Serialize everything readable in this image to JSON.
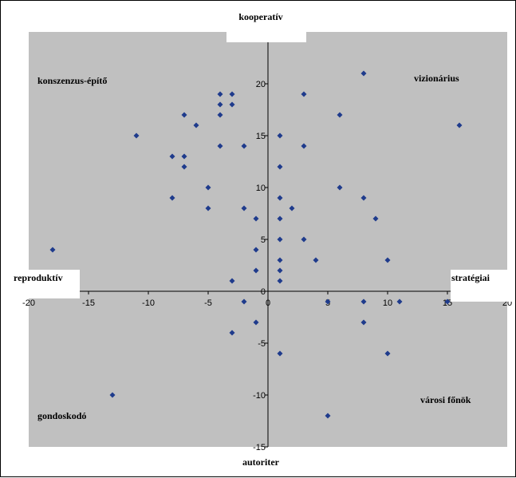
{
  "chart_data": {
    "type": "scatter",
    "title": "",
    "xlabel": "",
    "ylabel": "",
    "xlim": [
      -20,
      20
    ],
    "ylim": [
      -15,
      25
    ],
    "x_ticks": [
      -20,
      -15,
      -10,
      -5,
      0,
      5,
      10,
      15,
      20
    ],
    "y_ticks": [
      -15,
      -10,
      -5,
      0,
      5,
      10,
      15,
      20
    ],
    "x_tick_labels": [
      "-20",
      "-15",
      "-10",
      "-5",
      "0",
      "5",
      "10",
      "15",
      "20"
    ],
    "y_tick_labels": [
      "-15",
      "-10",
      "-5",
      "0",
      "5",
      "10",
      "15",
      "20"
    ],
    "grid": false,
    "plot_background": "#c0c0c0",
    "marker_color": "#1f3b8c",
    "axis_labels": {
      "top": "kooperatív",
      "bottom": "autoriter",
      "left": "reproduktív",
      "right": "stratégiai"
    },
    "quadrant_labels": {
      "top_left": "konszenzus-építő",
      "top_right": "vizionárius",
      "bottom_left": "gondoskodó",
      "bottom_right": "városi főnök"
    },
    "points": [
      {
        "x": -18,
        "y": 4
      },
      {
        "x": -13,
        "y": -10
      },
      {
        "x": -11,
        "y": 15
      },
      {
        "x": -8,
        "y": 13
      },
      {
        "x": -8,
        "y": 9
      },
      {
        "x": -7,
        "y": 17
      },
      {
        "x": -7,
        "y": 13
      },
      {
        "x": -7,
        "y": 12
      },
      {
        "x": -6,
        "y": 16
      },
      {
        "x": -5,
        "y": 10
      },
      {
        "x": -5,
        "y": 8
      },
      {
        "x": -4,
        "y": 19
      },
      {
        "x": -4,
        "y": 18
      },
      {
        "x": -4,
        "y": 17
      },
      {
        "x": -4,
        "y": 14
      },
      {
        "x": -3,
        "y": 19
      },
      {
        "x": -3,
        "y": 18
      },
      {
        "x": -3,
        "y": 1
      },
      {
        "x": -3,
        "y": -4
      },
      {
        "x": -2,
        "y": 14
      },
      {
        "x": -2,
        "y": 8
      },
      {
        "x": -2,
        "y": -1
      },
      {
        "x": -1,
        "y": 7
      },
      {
        "x": -1,
        "y": 4
      },
      {
        "x": -1,
        "y": 2
      },
      {
        "x": -1,
        "y": -3
      },
      {
        "x": 1,
        "y": 15
      },
      {
        "x": 1,
        "y": 12
      },
      {
        "x": 1,
        "y": 9
      },
      {
        "x": 1,
        "y": 7
      },
      {
        "x": 1,
        "y": 5
      },
      {
        "x": 1,
        "y": 3
      },
      {
        "x": 1,
        "y": 2
      },
      {
        "x": 1,
        "y": 1
      },
      {
        "x": 1,
        "y": -6
      },
      {
        "x": 2,
        "y": 8
      },
      {
        "x": 3,
        "y": 19
      },
      {
        "x": 3,
        "y": 14
      },
      {
        "x": 3,
        "y": 5
      },
      {
        "x": 4,
        "y": 3
      },
      {
        "x": 5,
        "y": -1
      },
      {
        "x": 5,
        "y": -12
      },
      {
        "x": 6,
        "y": 17
      },
      {
        "x": 6,
        "y": 10
      },
      {
        "x": 8,
        "y": 21
      },
      {
        "x": 8,
        "y": 9
      },
      {
        "x": 8,
        "y": -1
      },
      {
        "x": 8,
        "y": -3
      },
      {
        "x": 9,
        "y": 7
      },
      {
        "x": 10,
        "y": 3
      },
      {
        "x": 10,
        "y": -6
      },
      {
        "x": 11,
        "y": -1
      },
      {
        "x": 15,
        "y": -1
      },
      {
        "x": 16,
        "y": 16
      }
    ]
  }
}
